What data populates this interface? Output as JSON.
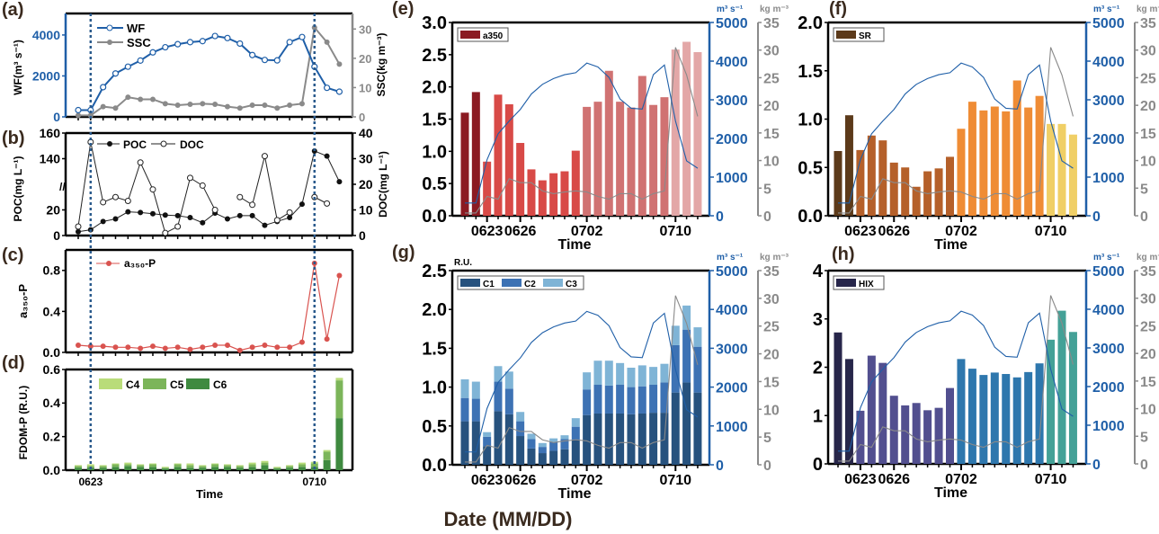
{
  "figure": {
    "global_xlabel": "Date (MM/DD)"
  },
  "colors": {
    "wf": "#1f5fa8",
    "ssc": "#8a8a8a",
    "dashed": "#2a5a8c",
    "a350p": "#d9534f"
  },
  "chart_data": [
    {
      "panel": "(a)",
      "type": "line",
      "ylabel": "WF(m³ s⁻¹)",
      "y2label": "SSC(kg m⁻³)",
      "ylim": [
        0,
        5050
      ],
      "yticks": [
        "0",
        "2000",
        "4000"
      ],
      "y2lim": [
        0,
        35.3
      ],
      "y2ticks": [
        "0",
        "10",
        "20",
        "30"
      ],
      "legend": [
        "WF",
        "SSC"
      ],
      "series": [
        {
          "name": "WF",
          "axis": "left",
          "values": [
            330,
            330,
            1450,
            2120,
            2450,
            2750,
            3150,
            3400,
            3550,
            3650,
            3700,
            3950,
            3850,
            3580,
            3020,
            2780,
            2760,
            3650,
            3900,
            2450,
            1420,
            1230
          ]
        },
        {
          "name": "SSC",
          "axis": "right",
          "values": [
            0.5,
            0.5,
            3.5,
            3.0,
            6.7,
            6.0,
            6.0,
            4.5,
            4.0,
            4.3,
            4.5,
            4.3,
            3.5,
            3.0,
            4.0,
            4.0,
            3.0,
            4.0,
            4.5,
            30.5,
            25.5,
            18.0
          ]
        }
      ]
    },
    {
      "panel": "(b)",
      "type": "line",
      "ylabel": "POC(mg L⁻¹)",
      "y2label": "DOC(mg L⁻¹)",
      "ylim_broken": [
        [
          0,
          40
        ],
        [
          120,
          160
        ]
      ],
      "yticks": [
        "0",
        "20",
        "140",
        "160"
      ],
      "y2lim": [
        0,
        40
      ],
      "y2ticks": [
        "0",
        "10",
        "20",
        "30",
        "40"
      ],
      "legend": [
        "POC",
        "DOC"
      ],
      "series": [
        {
          "name": "POC",
          "axis": "left",
          "values": [
            3,
            4.5,
            11,
            13,
            18.5,
            18,
            17,
            16,
            15.5,
            14,
            10,
            17.5,
            13,
            15.5,
            15.5,
            8,
            11,
            14,
            24.5,
            146,
            142,
            122
          ]
        },
        {
          "name": "DOC",
          "axis": "right",
          "values": [
            3.5,
            36.5,
            13,
            15,
            13.5,
            28.5,
            18,
            1,
            3.5,
            22.5,
            19.5,
            10,
            null,
            15,
            12,
            31,
            6,
            9,
            null,
            15,
            12.5,
            null
          ]
        }
      ]
    },
    {
      "panel": "(c)",
      "type": "line",
      "ylabel": "a₃₅₀-P",
      "ylim": [
        0,
        1.0
      ],
      "yticks": [
        "0.0",
        "0.4",
        "0.8"
      ],
      "legend": [
        "a₃₅₀-P"
      ],
      "series": [
        {
          "name": "a₃₅₀-P",
          "values": [
            0.07,
            0.06,
            0.06,
            0.05,
            0.05,
            0.04,
            0.06,
            0.04,
            0.05,
            0.03,
            0.05,
            0.07,
            0.07,
            0.02,
            0.05,
            0.07,
            0.05,
            0.05,
            0.1,
            0.87,
            0.13,
            0.75
          ]
        }
      ]
    },
    {
      "panel": "(d)",
      "type": "bar",
      "stacked": true,
      "ylabel": "FDOM-P (R.U.)",
      "xlabel": "Time",
      "ylim": [
        0,
        0.6
      ],
      "yticks": [
        "0.0",
        "0.2",
        "0.4",
        "0.6"
      ],
      "x_ticks": [
        {
          "index": 1,
          "label": "0623"
        },
        {
          "index": 19,
          "label": "0710"
        }
      ],
      "legend": [
        "C4",
        "C5",
        "C6"
      ],
      "series": [
        {
          "name": "C6",
          "color": "#3f8a40",
          "values": [
            0.015,
            0.015,
            0.015,
            0.02,
            0.025,
            0.02,
            0.02,
            0.01,
            0.02,
            0.015,
            0.015,
            0.02,
            0.02,
            0.015,
            0.02,
            0.03,
            0.01,
            0.015,
            0.02,
            0.02,
            0.06,
            0.31
          ]
        },
        {
          "name": "C5",
          "color": "#7cb55a",
          "values": [
            0.01,
            0.01,
            0.01,
            0.015,
            0.01,
            0.01,
            0.015,
            0.005,
            0.015,
            0.015,
            0.01,
            0.015,
            0.01,
            0.01,
            0.015,
            0.015,
            0.005,
            0.01,
            0.015,
            0.02,
            0.05,
            0.225
          ]
        },
        {
          "name": "C4",
          "color": "#b9dc7a",
          "values": [
            0.005,
            0.01,
            0.005,
            0.005,
            0.01,
            0.005,
            0.005,
            0.005,
            0.005,
            0.01,
            0.005,
            0.005,
            0.005,
            0.005,
            0.01,
            0.01,
            0.005,
            0.005,
            0.01,
            0.01,
            0.01,
            0.015
          ]
        }
      ]
    },
    {
      "panel": "(e)",
      "type": "bar",
      "xlabel": "Time",
      "ylim": [
        0,
        3
      ],
      "yticks": [
        "0.0",
        "0.5",
        "1.0",
        "1.5",
        "2.0",
        "2.5",
        "3.0"
      ],
      "legend": [
        "a350"
      ],
      "x_ticks": [
        {
          "index": 2,
          "label": "0623"
        },
        {
          "index": 5,
          "label": "0626"
        },
        {
          "index": 11,
          "label": "0702"
        },
        {
          "index": 19,
          "label": "0710"
        }
      ],
      "series": [
        {
          "name": "a350",
          "values": [
            1.6,
            1.92,
            0.84,
            1.88,
            1.73,
            1.13,
            0.72,
            0.55,
            0.66,
            0.69,
            1.01,
            1.69,
            1.77,
            2.25,
            1.77,
            1.68,
            2.17,
            1.72,
            1.84,
            2.58,
            2.7,
            2.54
          ]
        }
      ],
      "color_groups": [
        {
          "from": 0,
          "to": 1,
          "color": "#8b1a22"
        },
        {
          "from": 2,
          "to": 10,
          "color": "#d84a47"
        },
        {
          "from": 11,
          "to": 18,
          "color": "#d07272"
        },
        {
          "from": 19,
          "to": 21,
          "color": "#e3a7a7"
        }
      ],
      "overlay": {
        "wf_unit": "m³ s⁻¹",
        "ssc_unit": "kg m⁻³",
        "wf_ylim": [
          0,
          5000
        ],
        "wf_ticks": [
          "0",
          "1000",
          "2000",
          "3000",
          "4000",
          "5000"
        ],
        "ssc_ylim": [
          0,
          35
        ],
        "ssc_ticks": [
          "0",
          "5",
          "10",
          "15",
          "20",
          "25",
          "30",
          "35"
        ]
      }
    },
    {
      "panel": "(f)",
      "type": "bar",
      "xlabel": "Time",
      "ylim": [
        0,
        2
      ],
      "yticks": [
        "0.0",
        "0.5",
        "1.0",
        "1.5",
        "2.0"
      ],
      "legend": [
        "SR"
      ],
      "x_ticks": [
        {
          "index": 2,
          "label": "0623"
        },
        {
          "index": 5,
          "label": "0626"
        },
        {
          "index": 11,
          "label": "0702"
        },
        {
          "index": 19,
          "label": "0710"
        }
      ],
      "series": [
        {
          "name": "SR",
          "values": [
            0.67,
            1.04,
            0.68,
            0.83,
            0.78,
            0.55,
            0.5,
            0.3,
            0.46,
            0.49,
            0.61,
            0.9,
            1.18,
            1.09,
            1.13,
            1.08,
            1.4,
            1.12,
            1.24,
            0.95,
            0.95,
            0.84
          ]
        }
      ],
      "color_groups": [
        {
          "from": 0,
          "to": 1,
          "color": "#5c3a1a"
        },
        {
          "from": 2,
          "to": 10,
          "color": "#b5602a"
        },
        {
          "from": 11,
          "to": 18,
          "color": "#ef8c35"
        },
        {
          "from": 19,
          "to": 21,
          "color": "#f0cf66"
        }
      ],
      "overlay": {
        "wf_unit": "m³ s⁻¹",
        "ssc_unit": "kg m⁻³",
        "wf_ylim": [
          0,
          5000
        ],
        "wf_ticks": [
          "0",
          "1000",
          "2000",
          "3000",
          "4000",
          "5000"
        ],
        "ssc_ylim": [
          0,
          35
        ],
        "ssc_ticks": [
          "0",
          "5",
          "10",
          "15",
          "20",
          "25",
          "30",
          "35"
        ]
      }
    },
    {
      "panel": "(g)",
      "type": "bar",
      "stacked": true,
      "xlabel": "Time",
      "yunit": "R.U.",
      "ylim": [
        0,
        2.5
      ],
      "yticks": [
        "0.0",
        "0.5",
        "1.0",
        "1.5",
        "2.0",
        "2.5"
      ],
      "legend": [
        "C1",
        "C2",
        "C3"
      ],
      "x_ticks": [
        {
          "index": 2,
          "label": "0623"
        },
        {
          "index": 5,
          "label": "0626"
        },
        {
          "index": 11,
          "label": "0702"
        },
        {
          "index": 19,
          "label": "0710"
        }
      ],
      "series": [
        {
          "name": "C1",
          "color": "#27527e",
          "values": [
            0.56,
            0.56,
            0.24,
            0.69,
            0.65,
            0.37,
            0.21,
            0.15,
            0.18,
            0.2,
            0.32,
            0.64,
            0.66,
            0.66,
            0.66,
            0.65,
            0.66,
            0.67,
            0.67,
            0.93,
            1.06,
            0.93
          ]
        },
        {
          "name": "C2",
          "color": "#3d72b4",
          "values": [
            0.3,
            0.29,
            0.12,
            0.38,
            0.33,
            0.19,
            0.12,
            0.08,
            0.11,
            0.13,
            0.17,
            0.33,
            0.37,
            0.36,
            0.37,
            0.35,
            0.35,
            0.36,
            0.39,
            0.61,
            0.68,
            0.59
          ]
        },
        {
          "name": "C3",
          "color": "#7fb4d6",
          "values": [
            0.24,
            0.22,
            0.06,
            0.2,
            0.22,
            0.12,
            0.07,
            0.05,
            0.05,
            0.05,
            0.11,
            0.22,
            0.31,
            0.32,
            0.28,
            0.25,
            0.27,
            0.23,
            0.24,
            0.25,
            0.31,
            0.25
          ]
        }
      ],
      "overlay": {
        "wf_unit": "m³ s⁻¹",
        "ssc_unit": "kg m⁻³",
        "wf_ylim": [
          0,
          5000
        ],
        "wf_ticks": [
          "0",
          "1000",
          "2000",
          "3000",
          "4000",
          "5000"
        ],
        "ssc_ylim": [
          0,
          35
        ],
        "ssc_ticks": [
          "0",
          "5",
          "10",
          "15",
          "20",
          "25",
          "30",
          "35"
        ]
      }
    },
    {
      "panel": "(h)",
      "type": "bar",
      "xlabel": "Time",
      "ylim": [
        0,
        4
      ],
      "yticks": [
        "0",
        "1",
        "2",
        "3",
        "4"
      ],
      "legend": [
        "HIX"
      ],
      "x_ticks": [
        {
          "index": 2,
          "label": "0623"
        },
        {
          "index": 5,
          "label": "0626"
        },
        {
          "index": 11,
          "label": "0702"
        },
        {
          "index": 19,
          "label": "0710"
        }
      ],
      "series": [
        {
          "name": "HIX",
          "values": [
            2.72,
            2.17,
            1.1,
            2.24,
            2.09,
            1.41,
            1.21,
            1.26,
            1.11,
            1.16,
            1.57,
            2.17,
            1.97,
            1.84,
            1.89,
            1.86,
            1.79,
            1.9,
            2.08,
            2.57,
            3.17,
            2.73
          ]
        }
      ],
      "color_groups": [
        {
          "from": 0,
          "to": 1,
          "color": "#27264a"
        },
        {
          "from": 2,
          "to": 10,
          "color": "#524f8f"
        },
        {
          "from": 11,
          "to": 18,
          "color": "#2e77ad"
        },
        {
          "from": 19,
          "to": 21,
          "color": "#44a197"
        }
      ],
      "overlay": {
        "wf_unit": "m³ s⁻¹",
        "ssc_unit": "kg m⁻³",
        "wf_ylim": [
          0,
          5000
        ],
        "wf_ticks": [
          "0",
          "1000",
          "2000",
          "3000",
          "4000",
          "5000"
        ],
        "ssc_ylim": [
          0,
          35
        ],
        "ssc_ticks": [
          "0",
          "5",
          "10",
          "15",
          "20",
          "25",
          "30",
          "35"
        ]
      }
    }
  ]
}
